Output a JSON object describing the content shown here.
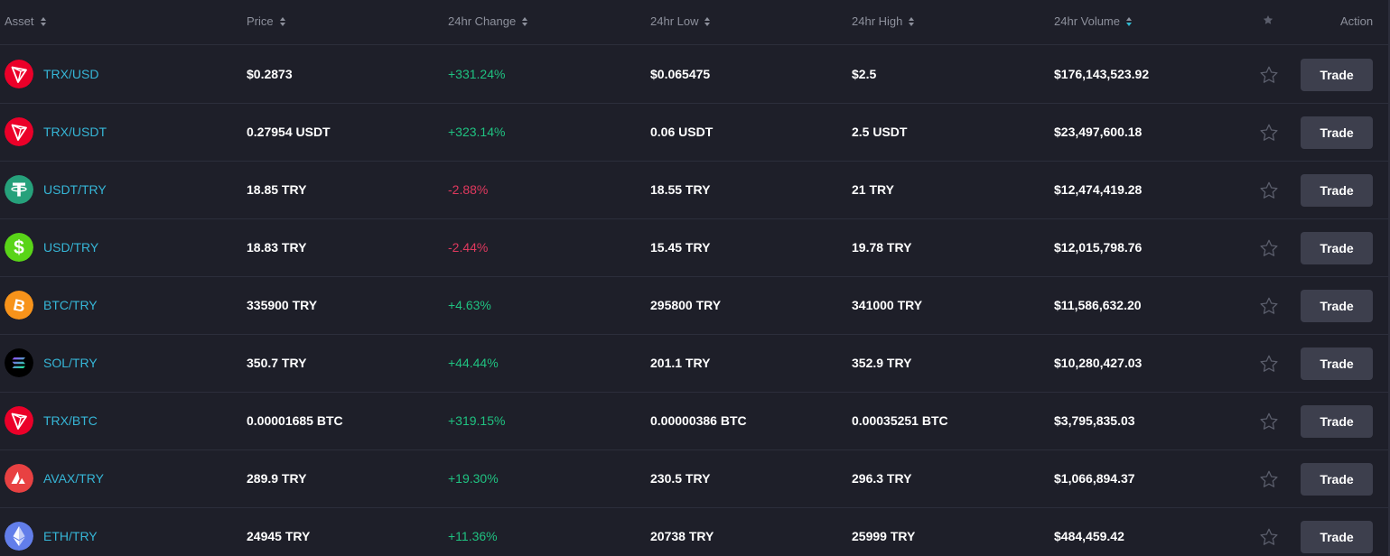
{
  "header": {
    "asset": "Asset",
    "price": "Price",
    "change": "24hr Change",
    "low": "24hr Low",
    "high": "24hr High",
    "volume": "24hr Volume",
    "action": "Action"
  },
  "colors": {
    "positive": "#1fc281",
    "negative": "#e0395e",
    "pair": "#36b6d7"
  },
  "rows": [
    {
      "icon": "tron-icon",
      "pair": "TRX/USD",
      "price": "$0.2873",
      "change": "+331.24%",
      "dir": "up",
      "low": "$0.065475",
      "high": "$2.5",
      "volume": "$176,143,523.92",
      "action": "Trade"
    },
    {
      "icon": "tron-icon",
      "pair": "TRX/USDT",
      "price": "0.27954 USDT",
      "change": "+323.14%",
      "dir": "up",
      "low": "0.06 USDT",
      "high": "2.5 USDT",
      "volume": "$23,497,600.18",
      "action": "Trade"
    },
    {
      "icon": "tether-icon",
      "pair": "USDT/TRY",
      "price": "18.85 TRY",
      "change": "-2.88%",
      "dir": "down",
      "low": "18.55 TRY",
      "high": "21 TRY",
      "volume": "$12,474,419.28",
      "action": "Trade"
    },
    {
      "icon": "dollar-icon",
      "pair": "USD/TRY",
      "price": "18.83 TRY",
      "change": "-2.44%",
      "dir": "down",
      "low": "15.45 TRY",
      "high": "19.78 TRY",
      "volume": "$12,015,798.76",
      "action": "Trade"
    },
    {
      "icon": "bitcoin-icon",
      "pair": "BTC/TRY",
      "price": "335900 TRY",
      "change": "+4.63%",
      "dir": "up",
      "low": "295800 TRY",
      "high": "341000 TRY",
      "volume": "$11,586,632.20",
      "action": "Trade"
    },
    {
      "icon": "solana-icon",
      "pair": "SOL/TRY",
      "price": "350.7 TRY",
      "change": "+44.44%",
      "dir": "up",
      "low": "201.1 TRY",
      "high": "352.9 TRY",
      "volume": "$10,280,427.03",
      "action": "Trade"
    },
    {
      "icon": "tron-icon",
      "pair": "TRX/BTC",
      "price": "0.00001685 BTC",
      "change": "+319.15%",
      "dir": "up",
      "low": "0.00000386 BTC",
      "high": "0.00035251 BTC",
      "volume": "$3,795,835.03",
      "action": "Trade"
    },
    {
      "icon": "avalanche-icon",
      "pair": "AVAX/TRY",
      "price": "289.9 TRY",
      "change": "+19.30%",
      "dir": "up",
      "low": "230.5 TRY",
      "high": "296.3 TRY",
      "volume": "$1,066,894.37",
      "action": "Trade"
    },
    {
      "icon": "ethereum-icon",
      "pair": "ETH/TRY",
      "price": "24945 TRY",
      "change": "+11.36%",
      "dir": "up",
      "low": "20738 TRY",
      "high": "25999 TRY",
      "volume": "$484,459.42",
      "action": "Trade"
    }
  ]
}
